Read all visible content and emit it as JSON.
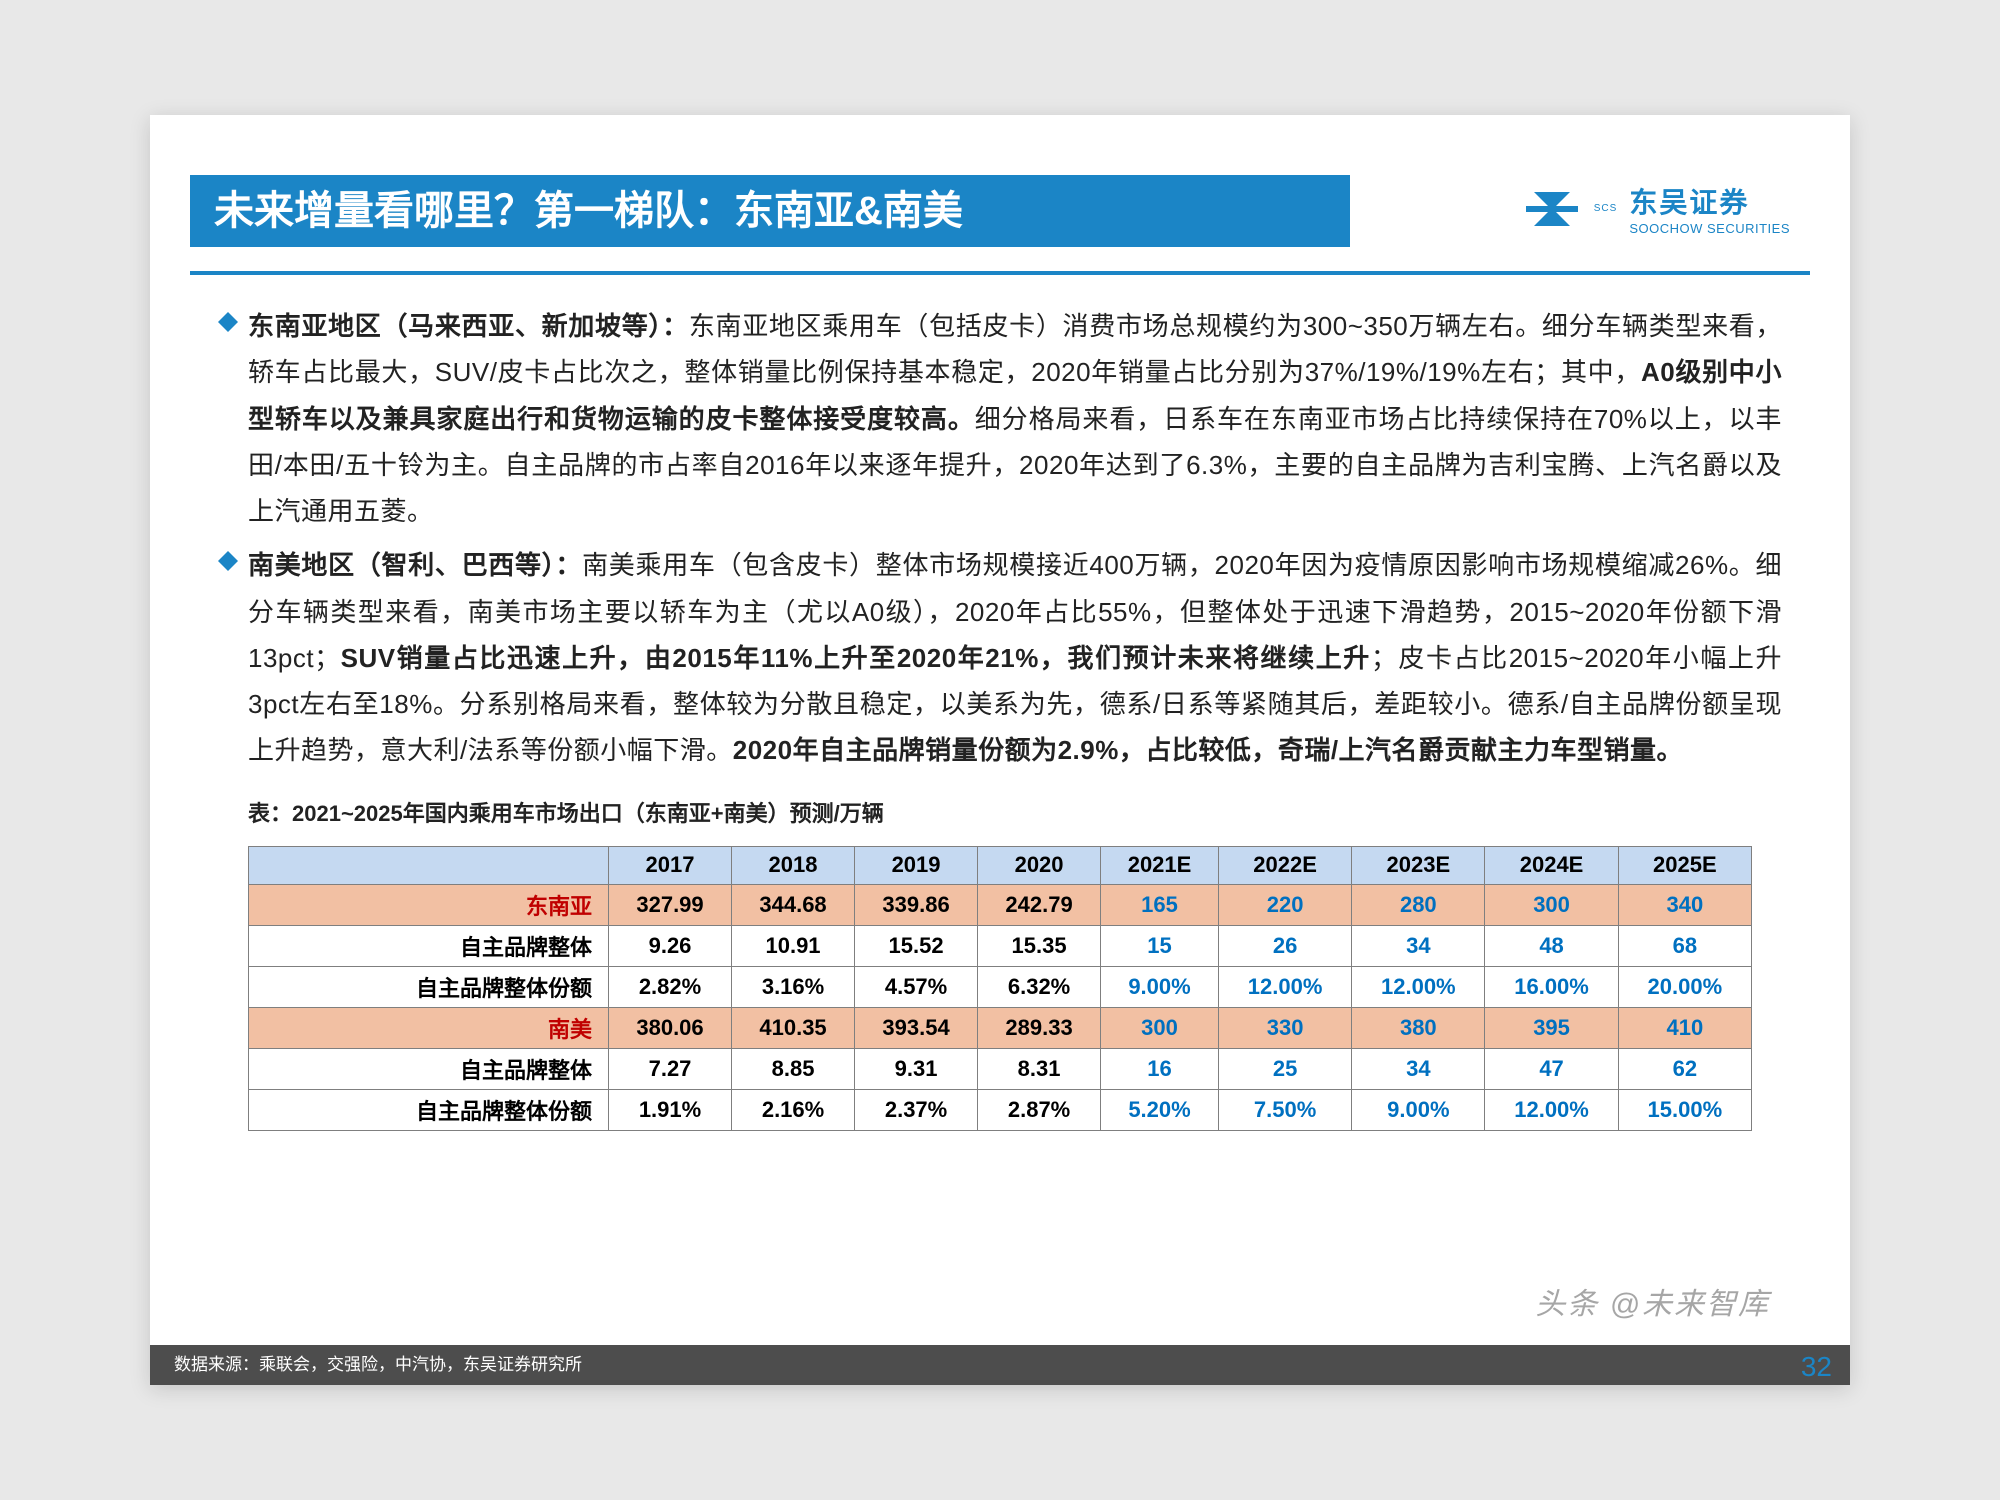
{
  "header": {
    "title": "未来增量看哪里？第一梯队：东南亚&南美",
    "company_cn": "东吴证券",
    "company_en": "SOOCHOW SECURITIES",
    "logo_sub": "SCS",
    "accent_color": "#1b85c6"
  },
  "bullets": [
    {
      "lead": "东南亚地区（马来西亚、新加坡等）：",
      "text_parts": [
        {
          "t": "东南亚地区乘用车（包括皮卡）消费市场总规模约为300~350万辆左右。细分车辆类型来看，轿车占比最大，SUV/皮卡占比次之，整体销量比例保持基本稳定，2020年销量占比分别为37%/19%/19%左右；其中，",
          "b": false
        },
        {
          "t": "A0级别中小型轿车以及兼具家庭出行和货物运输的皮卡整体接受度较高。",
          "b": true
        },
        {
          "t": "细分格局来看，日系车在东南亚市场占比持续保持在70%以上，以丰田/本田/五十铃为主。自主品牌的市占率自2016年以来逐年提升，2020年达到了6.3%，主要的自主品牌为吉利宝腾、上汽名爵以及上汽通用五菱。",
          "b": false
        }
      ]
    },
    {
      "lead": "南美地区（智利、巴西等）：",
      "text_parts": [
        {
          "t": "南美乘用车（包含皮卡）整体市场规模接近400万辆，2020年因为疫情原因影响市场规模缩减26%。细分车辆类型来看，南美市场主要以轿车为主（尤以A0级），2020年占比55%，但整体处于迅速下滑趋势，2015~2020年份额下滑13pct；",
          "b": false
        },
        {
          "t": "SUV销量占比迅速上升，由2015年11%上升至2020年21%，我们预计未来将继续上升",
          "b": true
        },
        {
          "t": "；皮卡占比2015~2020年小幅上升3pct左右至18%。分系别格局来看，整体较为分散且稳定，以美系为先，德系/日系等紧随其后，差距较小。德系/自主品牌份额呈现上升趋势，意大利/法系等份额小幅下滑。",
          "b": false
        },
        {
          "t": "2020年自主品牌销量份额为2.9%，占比较低，奇瑞/上汽名爵贡献主力车型销量。",
          "b": true
        }
      ]
    }
  ],
  "table": {
    "caption": "表：2021~2025年国内乘用车市场出口（东南亚+南美）预测/万辆",
    "columns": [
      "2017",
      "2018",
      "2019",
      "2020",
      "2021E",
      "2022E",
      "2023E",
      "2024E",
      "2025E"
    ],
    "estimate_start_col": 4,
    "header_bg": "#c5d9f1",
    "region_bg": "#f2c0a3",
    "region_color": "#c00000",
    "est_color": "#0070c0",
    "border_color": "#7f7f7f",
    "rows": [
      {
        "label": "东南亚",
        "type": "region",
        "cells": [
          "327.99",
          "344.68",
          "339.86",
          "242.79",
          "165",
          "220",
          "280",
          "300",
          "340"
        ]
      },
      {
        "label": "自主品牌整体",
        "type": "sub",
        "cells": [
          "9.26",
          "10.91",
          "15.52",
          "15.35",
          "15",
          "26",
          "34",
          "48",
          "68"
        ]
      },
      {
        "label": "自主品牌整体份额",
        "type": "sub",
        "cells": [
          "2.82%",
          "3.16%",
          "4.57%",
          "6.32%",
          "9.00%",
          "12.00%",
          "12.00%",
          "16.00%",
          "20.00%"
        ]
      },
      {
        "label": "南美",
        "type": "region",
        "cells": [
          "380.06",
          "410.35",
          "393.54",
          "289.33",
          "300",
          "330",
          "380",
          "395",
          "410"
        ]
      },
      {
        "label": "自主品牌整体",
        "type": "sub",
        "cells": [
          "7.27",
          "8.85",
          "9.31",
          "8.31",
          "16",
          "25",
          "34",
          "47",
          "62"
        ]
      },
      {
        "label": "自主品牌整体份额",
        "type": "sub",
        "cells": [
          "1.91%",
          "2.16%",
          "2.37%",
          "2.87%",
          "5.20%",
          "7.50%",
          "9.00%",
          "12.00%",
          "15.00%"
        ]
      }
    ]
  },
  "footer": {
    "source": "数据来源：乘联会，交强险，中汽协，东吴证券研究所",
    "page_number": "32",
    "watermark": "头条 @未来智库"
  }
}
